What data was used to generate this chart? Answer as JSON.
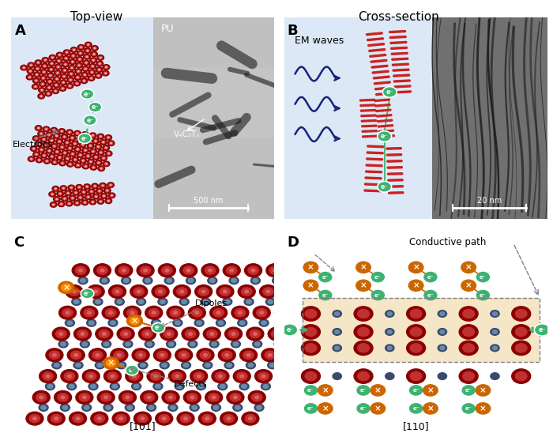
{
  "title_top_left": "Top-view",
  "title_top_right": "Cross-section",
  "label_A": "A",
  "label_B": "B",
  "label_C": "C",
  "label_D": "D",
  "text_PU": "PU",
  "text_V4C3Tx": "V₄C₃Tₓ",
  "text_500nm": "500 nm",
  "text_20nm": "20 nm",
  "text_electrons": "Electrons",
  "text_em_waves": "EM waves",
  "text_dipoles": "Dipoles",
  "text_defects": "Defects",
  "text_101": "[101]",
  "text_110": "[110]",
  "text_conductive_path": "Conductive path",
  "bg_blue_light": "#dce8f5",
  "bg_white": "#ffffff",
  "bg_tan": "#f5e6c8",
  "color_dark_red": "#8b0000",
  "color_red_inner": "#c0392b",
  "color_blue_gray": "#3a4a6a",
  "color_blue_gray_inner": "#6a8aaa",
  "color_green": "#3cb371",
  "color_blue_dark": "#1a237e",
  "color_orange": "#cc6600",
  "color_orange_inner": "#ff8c00"
}
